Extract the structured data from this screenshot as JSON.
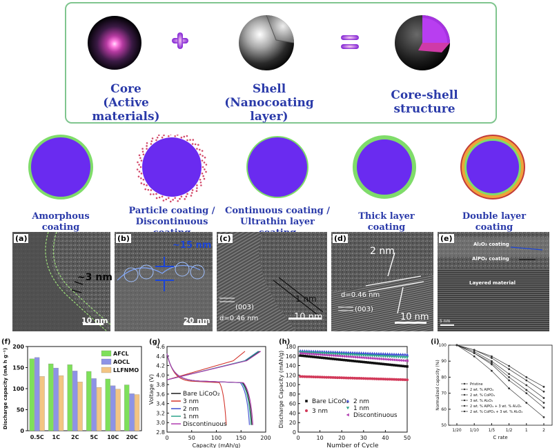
{
  "top": {
    "core_title": "Core",
    "core_sub": "(Active materials)",
    "shell_title": "Shell",
    "shell_sub": "(Nanocoating layer)",
    "cs_title": "Core-shell structure",
    "plus": "+",
    "equals": "="
  },
  "coatings": [
    {
      "label": "Amorphous coating"
    },
    {
      "label": "Particle coating /",
      "label2": "Discontinuous coating"
    },
    {
      "label": "Continuous coating /",
      "label2": "Ultrathin layer coating"
    },
    {
      "label": "Thick layer coating"
    },
    {
      "label": "Double layer coating"
    }
  ],
  "tem": {
    "a": {
      "tag": "(a)",
      "thick": "~3 nm",
      "scale": "10 nm"
    },
    "b": {
      "tag": "(b)",
      "thick": "~15 nm",
      "scale": "20 nm"
    },
    "c": {
      "tag": "(c)",
      "plane": "(003)",
      "d": "d=0.46 nm",
      "layer": "1 nm",
      "scale": "10 nm"
    },
    "d": {
      "tag": "(d)",
      "layer": "2 nm",
      "d": "d=0.46 nm",
      "plane": "(003)",
      "scale": "10 nm"
    },
    "e": {
      "tag": "(e)",
      "l1": "Al₂O₃ coating",
      "l2": "AlPO₄ coating",
      "l3": "Layered material",
      "scale": "5 nm"
    }
  },
  "colors": {
    "core": "#6a2bf0",
    "coat_green": "#7fdc6a",
    "coat_orange": "#f0a23a",
    "coat_red": "#c23a3a",
    "accent": "#2a3aa9"
  },
  "chart_data": [
    {
      "id": "f",
      "tag": "(f)",
      "type": "bar",
      "ylabel": "Discharge capacity (mA h g⁻¹)",
      "ylim": [
        0,
        200
      ],
      "yticks": [
        "0",
        "50",
        "100",
        "150",
        "200"
      ],
      "categories": [
        "0.5C",
        "1C",
        "2C",
        "5C",
        "10C",
        "20C"
      ],
      "series": [
        {
          "name": "AFCL",
          "color": "#7ee05a",
          "values": [
            171,
            159,
            157,
            141,
            123,
            109
          ]
        },
        {
          "name": "AOCL",
          "color": "#8d93e6",
          "values": [
            174,
            149,
            142,
            124,
            107,
            88
          ]
        },
        {
          "name": "LLFNMO",
          "color": "#f3c583",
          "values": [
            129,
            131,
            116,
            103,
            99,
            86
          ]
        }
      ]
    },
    {
      "id": "g",
      "tag": "(g)",
      "type": "line",
      "xlabel": "Capacity (mAh/g)",
      "ylabel": "Voltage (V)",
      "xlim": [
        0,
        200
      ],
      "ylim": [
        2.8,
        4.6
      ],
      "xticks": [
        "0",
        "50",
        "100",
        "150",
        "200"
      ],
      "yticks": [
        "2.8",
        "3.0",
        "3.2",
        "3.4",
        "3.6",
        "3.8",
        "4.0",
        "4.2",
        "4.4",
        "4.6"
      ],
      "series": [
        {
          "name": "Bare LiCoO₂",
          "color": "#1a1a1a"
        },
        {
          "name": "3 nm",
          "color": "#d2322a"
        },
        {
          "name": "2 nm",
          "color": "#3a4ad0"
        },
        {
          "name": "1 nm",
          "color": "#2aa38a"
        },
        {
          "name": "Discontinuous",
          "color": "#b03ab0"
        }
      ]
    },
    {
      "id": "h",
      "tag": "(h)",
      "type": "scatter",
      "xlabel": "Number of Cycle",
      "ylabel": "Discharge Capacity (mAh/g)",
      "xlim": [
        0,
        50
      ],
      "ylim": [
        0,
        180
      ],
      "xticks": [
        "0",
        "10",
        "20",
        "30",
        "40",
        "50"
      ],
      "yticks": [
        "0",
        "20",
        "40",
        "60",
        "80",
        "100",
        "120",
        "140",
        "160",
        "180"
      ],
      "series": [
        {
          "name": "Bare LiCoO₂",
          "marker": "square",
          "color": "#111111",
          "start": 161,
          "end": 138
        },
        {
          "name": "3 nm",
          "marker": "circle",
          "color": "#d23a5a",
          "start": 117,
          "end": 110
        },
        {
          "name": "2 nm",
          "marker": "triangle",
          "color": "#3a4ad0",
          "start": 171,
          "end": 163
        },
        {
          "name": "1 nm",
          "marker": "triangle-down",
          "color": "#2aa38a",
          "start": 168,
          "end": 157
        },
        {
          "name": "Discontinuous",
          "marker": "triangle-left",
          "color": "#b03ab0",
          "start": 166,
          "end": 150
        }
      ]
    },
    {
      "id": "i",
      "tag": "(i)",
      "type": "line",
      "xlabel": "C rate",
      "ylabel": "Normalized capacity (%)",
      "ylim": [
        50,
        100
      ],
      "categories": [
        "1/20",
        "1/10",
        "1/5",
        "1/2",
        "1",
        "2"
      ],
      "yticks": [
        "50",
        "60",
        "70",
        "80",
        "90",
        "100"
      ],
      "series": [
        {
          "name": "Pristine",
          "values": [
            100,
            93,
            84,
            73,
            64,
            55
          ]
        },
        {
          "name": "2 wt. % AlPO₄",
          "values": [
            100,
            95,
            88,
            78,
            70,
            61
          ]
        },
        {
          "name": "2 wt. % CoPO₄",
          "values": [
            100,
            95,
            89,
            80,
            72,
            64
          ]
        },
        {
          "name": "3 wt. % Al₂O₃",
          "values": [
            100,
            96,
            90,
            82,
            75,
            67
          ]
        },
        {
          "name": "2 wt. % AlPO₄ + 3 wt. % Al₂O₃",
          "values": [
            100,
            97,
            92,
            85,
            78,
            71
          ]
        },
        {
          "name": "2 wt. % CoPO₄ + 3 wt. % Al₂O₃",
          "values": [
            100,
            97,
            93,
            87,
            80,
            74
          ]
        }
      ]
    }
  ]
}
